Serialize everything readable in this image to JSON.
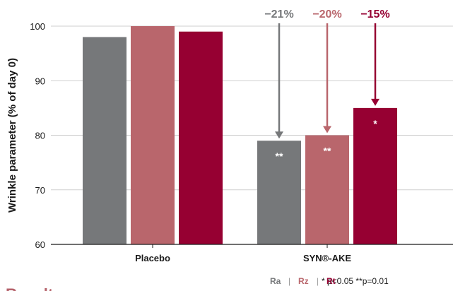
{
  "chart_data": {
    "type": "bar",
    "categories": [
      "Placebo",
      "SYN®-AKE"
    ],
    "series": [
      {
        "name": "Ra",
        "values": [
          98,
          79
        ],
        "color": "#76787a"
      },
      {
        "name": "Rz",
        "values": [
          100,
          80
        ],
        "color": "#b9666c"
      },
      {
        "name": "Rt",
        "values": [
          99,
          85
        ],
        "color": "#960032"
      }
    ],
    "ylabel": "Wrinkle parameter (% of day 0)",
    "xlabel": "",
    "ylim": [
      60,
      100
    ],
    "yticks": [
      60,
      70,
      80,
      90,
      100
    ],
    "grid": true,
    "legend_position": "bottom-right",
    "significance": [
      {
        "series": "Ra",
        "category": "SYN®-AKE",
        "label": "**"
      },
      {
        "series": "Rz",
        "category": "SYN®-AKE",
        "label": "**"
      },
      {
        "series": "Rt",
        "category": "SYN®-AKE",
        "label": "*"
      }
    ],
    "changes": [
      {
        "series": "Ra",
        "label": "−21%"
      },
      {
        "series": "Rz",
        "label": "−20%"
      },
      {
        "series": "Rt",
        "label": "−15%"
      }
    ],
    "legend": {
      "sep": "|"
    },
    "pvalue_note": "* p<0.05  **p=0.01"
  },
  "section_heading": "Results:"
}
